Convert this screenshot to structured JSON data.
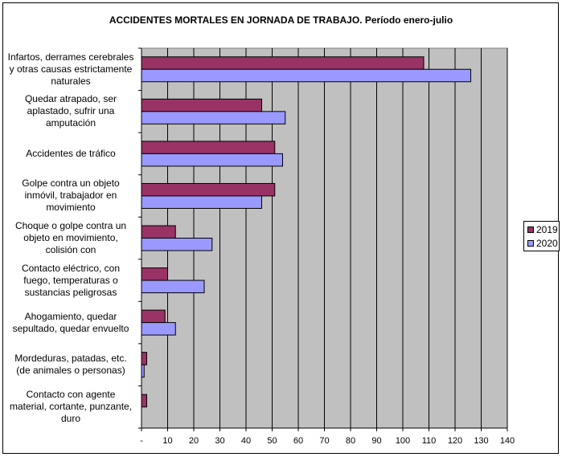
{
  "chart_data": {
    "type": "bar",
    "orientation": "horizontal",
    "title": "ACCIDENTES MORTALES EN JORNADA DE TRABAJO. Período enero-julio",
    "categories": [
      "Infartos, derrames cerebrales y otras causas estrictamente naturales",
      "Quedar atrapado, ser aplastado, sufrir una amputación",
      "Accidentes de tráfico",
      "Golpe contra un objeto inmóvil, trabajador en movimiento",
      "Choque o golpe contra un objeto en movimiento, colisión con",
      "Contacto eléctrico, con fuego, temperaturas o sustancias peligrosas",
      "Ahogamiento, quedar sepultado, quedar envuelto",
      "Mordeduras, patadas, etc. (de animales o personas)",
      "Contacto con agente material, cortante, punzante, duro"
    ],
    "category_lines": [
      [
        "Infartos, derrames cerebrales",
        "y otras causas estrictamente",
        "naturales"
      ],
      [
        "Quedar atrapado, ser",
        "aplastado, sufrir una",
        "amputación"
      ],
      [
        "Accidentes de tráfico"
      ],
      [
        "Golpe contra un objeto",
        "inmóvil, trabajador en",
        "movimiento"
      ],
      [
        "Choque o golpe contra un",
        "objeto en movimiento,",
        "colisión con"
      ],
      [
        "Contacto eléctrico, con",
        "fuego, temperaturas o",
        "sustancias peligrosas"
      ],
      [
        "Ahogamiento, quedar",
        "sepultado, quedar envuelto"
      ],
      [
        "Mordeduras, patadas, etc.",
        "(de animales o personas)"
      ],
      [
        "Contacto con agente",
        "material, cortante, punzante,",
        "duro"
      ]
    ],
    "series": [
      {
        "name": "2019",
        "color": "#993366",
        "values": [
          108,
          46,
          51,
          51,
          13,
          10,
          9,
          2,
          2
        ]
      },
      {
        "name": "2020",
        "color": "#9999ff",
        "values": [
          126,
          55,
          54,
          46,
          27,
          24,
          13,
          1,
          0
        ]
      }
    ],
    "xlim": [
      0,
      140
    ],
    "xticks": [
      0,
      10,
      20,
      30,
      40,
      50,
      60,
      70,
      80,
      90,
      100,
      110,
      120,
      130,
      140
    ],
    "xtick_labels": [
      "-",
      "10",
      "20",
      "30",
      "40",
      "50",
      "60",
      "70",
      "80",
      "90",
      "100",
      "110",
      "120",
      "130",
      "140"
    ],
    "grid": "vertical",
    "plot_background": "#c0c0c0",
    "legend_position": "right"
  }
}
